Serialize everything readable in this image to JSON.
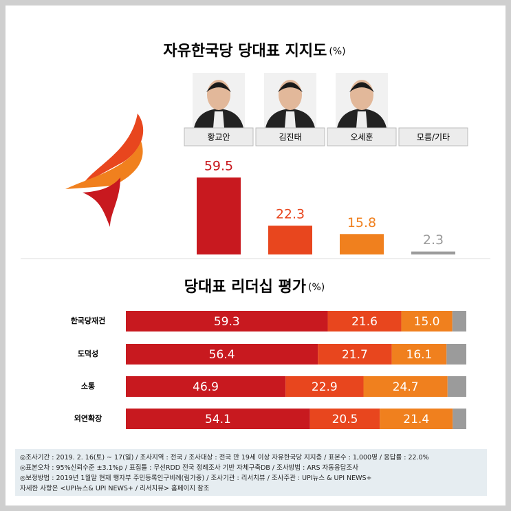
{
  "chart_data": [
    {
      "type": "bar",
      "title": "자유한국당 당대표 지지도",
      "unit": "(%)",
      "categories": [
        "황교안",
        "김진태",
        "오세훈",
        "모름/기타"
      ],
      "values": [
        59.5,
        22.3,
        15.8,
        2.3
      ],
      "colors": [
        "#c8191f",
        "#e8461e",
        "#f0801e",
        "#9b9b9b"
      ]
    },
    {
      "type": "stacked-bar-horizontal",
      "title": "당대표 리더십 평가",
      "unit": "(%)",
      "categories": [
        "한국당재건",
        "도덕성",
        "소통",
        "외연확장"
      ],
      "series": [
        {
          "color": "#c8191f",
          "values": [
            59.3,
            56.4,
            46.9,
            54.1
          ],
          "value_labels": [
            "59.3",
            "56.4",
            "46.9",
            "54.1"
          ]
        },
        {
          "color": "#e8461e",
          "values": [
            21.6,
            21.7,
            22.9,
            20.5
          ],
          "value_labels": [
            "21.6",
            "21.7",
            "22.9",
            "20.5"
          ]
        },
        {
          "color": "#f0801e",
          "values": [
            15.0,
            16.1,
            24.7,
            21.4
          ],
          "value_labels": [
            "15.0",
            "16.1",
            "24.7",
            "21.4"
          ]
        },
        {
          "color": "#9b9b9b",
          "values": [
            4.1,
            5.8,
            5.5,
            4.0
          ]
        }
      ]
    }
  ],
  "notes": [
    "◎조사기간 : 2019. 2. 16(토) ~ 17(일) / 조사지역 : 전국 / 조사대상 : 전국 만 19세 이상 자유한국당 지지층 / 표본수 : 1,000명 / 응답률 : 22.0%",
    "◎표본오차 : 95%신뢰수준 ±3.1%p  / 표집틀 : 무선RDD 전국 정례조사 기반 자체구축DB / 조사방법 : ARS 자동응답조사",
    "◎보정방법 : 2019년 1월말 현재 행자부 주민등록인구비례(림가중) / 조사기관 : 리서치뷰 / 조사주관 : UPI뉴스 & UPI NEWS+",
    "자세한 사항은 <UPI뉴스& UPI NEWS+ / 리서치뷰> 홈페이지 참조"
  ]
}
